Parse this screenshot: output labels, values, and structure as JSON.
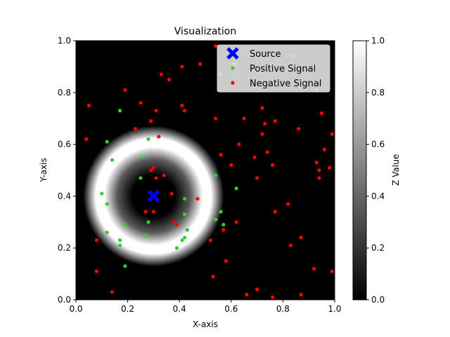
{
  "chart_data": {
    "type": "scatter",
    "title": "Visualization",
    "xlabel": "X-axis",
    "ylabel": "Y-axis",
    "xlim": [
      0,
      1
    ],
    "ylim": [
      0,
      1
    ],
    "x_ticks": [
      "0.0",
      "0.2",
      "0.4",
      "0.6",
      "0.8",
      "1.0"
    ],
    "y_ticks": [
      "0.0",
      "0.2",
      "0.4",
      "0.6",
      "0.8",
      "1.0"
    ],
    "grid": false,
    "legend_position": "top-right",
    "background_field": {
      "description_type": "ring",
      "center": [
        0.3,
        0.4
      ],
      "peak_radius": 0.14,
      "width": 0.06,
      "colormap": "gray",
      "zlim": [
        0,
        1
      ]
    },
    "colorbar": {
      "label": "Z Value",
      "ticks": [
        "0.0",
        "0.2",
        "0.4",
        "0.6",
        "0.8",
        "1.0"
      ],
      "range": [
        0,
        1
      ]
    },
    "series": [
      {
        "name": "Source",
        "marker": "X",
        "color": "#0000ff",
        "points": [
          [
            0.3,
            0.4
          ]
        ]
      },
      {
        "name": "Positive Signal",
        "marker": "circle",
        "color": "#33cc33",
        "points": [
          [
            0.17,
            0.73
          ],
          [
            0.12,
            0.61
          ],
          [
            0.14,
            0.54
          ],
          [
            0.28,
            0.62
          ],
          [
            0.26,
            0.55
          ],
          [
            0.25,
            0.47
          ],
          [
            0.1,
            0.41
          ],
          [
            0.12,
            0.37
          ],
          [
            0.19,
            0.29
          ],
          [
            0.28,
            0.3
          ],
          [
            0.27,
            0.25
          ],
          [
            0.17,
            0.23
          ],
          [
            0.17,
            0.21
          ],
          [
            0.19,
            0.13
          ],
          [
            0.12,
            0.26
          ],
          [
            0.42,
            0.39
          ],
          [
            0.42,
            0.33
          ],
          [
            0.43,
            0.27
          ],
          [
            0.42,
            0.24
          ],
          [
            0.41,
            0.23
          ],
          [
            0.39,
            0.2
          ],
          [
            0.54,
            0.48
          ],
          [
            0.54,
            0.31
          ],
          [
            0.56,
            0.34
          ],
          [
            0.62,
            0.43
          ],
          [
            0.57,
            0.29
          ]
        ]
      },
      {
        "name": "Negative Signal",
        "marker": "circle",
        "color": "#ff0000",
        "points": [
          [
            0.54,
            0.98
          ],
          [
            0.84,
            0.94
          ],
          [
            0.61,
            0.91
          ],
          [
            0.56,
            0.87
          ],
          [
            0.41,
            0.9
          ],
          [
            0.48,
            0.91
          ],
          [
            0.33,
            0.87
          ],
          [
            0.36,
            0.85
          ],
          [
            0.19,
            0.81
          ],
          [
            0.93,
            0.81
          ],
          [
            0.25,
            0.76
          ],
          [
            0.41,
            0.75
          ],
          [
            0.42,
            0.73
          ],
          [
            0.05,
            0.75
          ],
          [
            0.31,
            0.73
          ],
          [
            0.95,
            0.72
          ],
          [
            0.72,
            0.74
          ],
          [
            0.65,
            0.7
          ],
          [
            0.54,
            0.7
          ],
          [
            0.73,
            0.68
          ],
          [
            0.77,
            0.69
          ],
          [
            0.29,
            0.69
          ],
          [
            0.23,
            0.66
          ],
          [
            0.86,
            0.66
          ],
          [
            0.32,
            0.63
          ],
          [
            0.72,
            0.64
          ],
          [
            0.04,
            0.62
          ],
          [
            0.63,
            0.6
          ],
          [
            0.74,
            0.57
          ],
          [
            0.96,
            0.58
          ],
          [
            0.69,
            0.55
          ],
          [
            0.56,
            0.56
          ],
          [
            0.6,
            0.52
          ],
          [
            0.76,
            0.52
          ],
          [
            0.93,
            0.53
          ],
          [
            0.98,
            0.51
          ],
          [
            0.94,
            0.5
          ],
          [
            0.94,
            0.47
          ],
          [
            0.7,
            0.47
          ],
          [
            0.3,
            0.51
          ],
          [
            0.29,
            0.5
          ],
          [
            0.31,
            0.47
          ],
          [
            0.34,
            0.48
          ],
          [
            0.37,
            0.41
          ],
          [
            0.47,
            0.39
          ],
          [
            0.82,
            0.37
          ],
          [
            0.77,
            0.34
          ],
          [
            0.27,
            0.34
          ],
          [
            0.3,
            0.34
          ],
          [
            0.38,
            0.3
          ],
          [
            0.39,
            0.29
          ],
          [
            0.62,
            0.3
          ],
          [
            0.57,
            0.27
          ],
          [
            0.52,
            0.23
          ],
          [
            0.87,
            0.24
          ],
          [
            0.08,
            0.23
          ],
          [
            0.83,
            0.21
          ],
          [
            0.58,
            0.15
          ],
          [
            0.08,
            0.11
          ],
          [
            0.92,
            0.12
          ],
          [
            0.99,
            0.11
          ],
          [
            0.53,
            0.09
          ],
          [
            0.14,
            0.03
          ],
          [
            0.7,
            0.04
          ],
          [
            0.66,
            0.02
          ],
          [
            0.87,
            0.02
          ],
          [
            0.76,
            0.01
          ],
          [
            0.99,
            0.64
          ]
        ]
      }
    ]
  }
}
